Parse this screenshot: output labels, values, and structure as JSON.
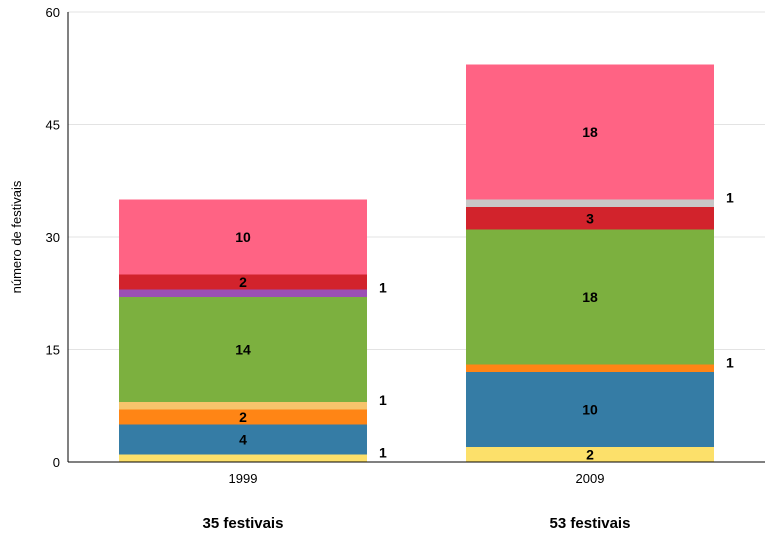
{
  "chart_data": {
    "type": "bar",
    "stacked": true,
    "categories": [
      "1999",
      "2009"
    ],
    "ylabel": "número de festivais",
    "ylim": [
      0,
      60
    ],
    "yticks": [
      0,
      15,
      30,
      45,
      60
    ],
    "grid": true,
    "totals": [
      "35 festivais",
      "53 festivais"
    ],
    "stacks": [
      {
        "category": "1999",
        "segments": [
          {
            "value": 1,
            "color": "#fce06a",
            "label": "1",
            "label_side": "outside"
          },
          {
            "value": 4,
            "color": "#357ca5",
            "label": "4",
            "label_side": "inside"
          },
          {
            "value": 2,
            "color": "#ff8515",
            "label": "2",
            "label_side": "inside"
          },
          {
            "value": 1,
            "color": "#f7c46c",
            "label": "1",
            "label_side": "outside"
          },
          {
            "value": 14,
            "color": "#7cb03f",
            "label": "14",
            "label_side": "inside"
          },
          {
            "value": 1,
            "color": "#9b4fb5",
            "label": "1",
            "label_side": "outside"
          },
          {
            "value": 2,
            "color": "#d2232c",
            "label": "2",
            "label_side": "inside"
          },
          {
            "value": 10,
            "color": "#ff6384",
            "label": "10",
            "label_side": "inside"
          }
        ]
      },
      {
        "category": "2009",
        "segments": [
          {
            "value": 2,
            "color": "#fce06a",
            "label": "2",
            "label_side": "inside"
          },
          {
            "value": 10,
            "color": "#357ca5",
            "label": "10",
            "label_side": "inside"
          },
          {
            "value": 1,
            "color": "#ff8515",
            "label": "1",
            "label_side": "outside"
          },
          {
            "value": 18,
            "color": "#7cb03f",
            "label": "18",
            "label_side": "inside"
          },
          {
            "value": 3,
            "color": "#d2232c",
            "label": "3",
            "label_side": "inside"
          },
          {
            "value": 1,
            "color": "#c8c8c8",
            "label": "1",
            "label_side": "outside"
          },
          {
            "value": 18,
            "color": "#ff6384",
            "label": "18",
            "label_side": "inside"
          }
        ]
      }
    ]
  }
}
